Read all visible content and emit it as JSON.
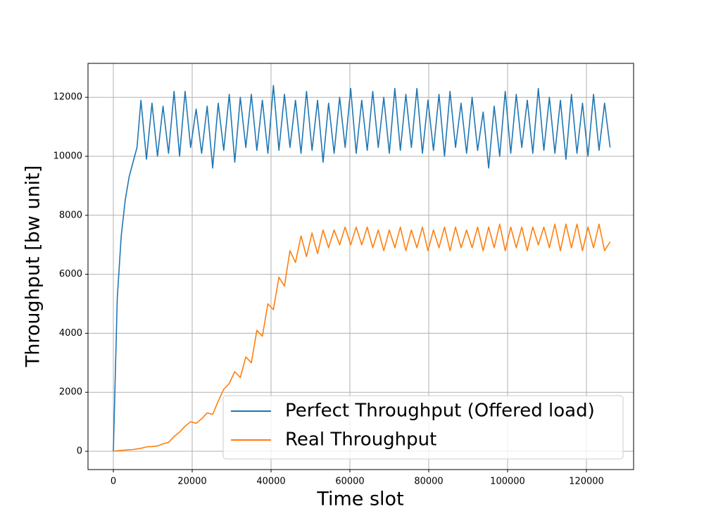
{
  "chart_data": {
    "type": "line",
    "xlabel": "Time slot",
    "ylabel": "Throughput [bw unit]",
    "x": [
      0,
      1000,
      2000,
      3000,
      4000,
      5000,
      6000,
      7000,
      8400,
      9800,
      11200,
      12600,
      14000,
      15400,
      16800,
      18200,
      19600,
      21000,
      22400,
      23800,
      25200,
      26600,
      28000,
      29400,
      30800,
      32200,
      33600,
      35000,
      36400,
      37800,
      39200,
      40600,
      42000,
      43400,
      44800,
      46200,
      47600,
      49000,
      50400,
      51800,
      53200,
      54600,
      56000,
      57400,
      58800,
      60200,
      61600,
      63000,
      64400,
      65800,
      67200,
      68600,
      70000,
      71400,
      72800,
      74200,
      75600,
      77000,
      78400,
      79800,
      81200,
      82600,
      84000,
      85400,
      86800,
      88200,
      89600,
      91000,
      92400,
      93800,
      95200,
      96600,
      98000,
      99400,
      100800,
      102200,
      103600,
      105000,
      106400,
      107800,
      109200,
      110600,
      112000,
      113400,
      114800,
      116200,
      117600,
      119000,
      120400,
      121800,
      123200,
      124600,
      126000
    ],
    "series": [
      {
        "name": "Perfect Throughput (Offered load)",
        "color": "#1f77b4",
        "values": [
          0,
          5200,
          7300,
          8500,
          9300,
          9800,
          10300,
          11900,
          9900,
          11800,
          10000,
          11700,
          10100,
          12200,
          10000,
          12200,
          10300,
          11600,
          10100,
          11700,
          9600,
          11800,
          10200,
          12100,
          9800,
          12000,
          10300,
          12100,
          10200,
          11900,
          10100,
          12400,
          10200,
          12100,
          10300,
          11900,
          10100,
          12200,
          10200,
          11900,
          9800,
          11800,
          10100,
          12000,
          10300,
          12300,
          10100,
          11900,
          10200,
          12200,
          10300,
          12000,
          10100,
          12300,
          10200,
          12100,
          10300,
          12300,
          10100,
          11900,
          10200,
          12100,
          10000,
          12200,
          10300,
          11800,
          10100,
          12000,
          10200,
          11500,
          9600,
          11700,
          10000,
          12200,
          10100,
          12100,
          10300,
          11900,
          10100,
          12300,
          10200,
          12000,
          10100,
          11900,
          9900,
          12100,
          10100,
          11800,
          10000,
          12100,
          10200,
          11800,
          10300
        ]
      },
      {
        "name": "Real Throughput",
        "color": "#ff7f0e",
        "values": [
          0,
          20,
          30,
          40,
          50,
          60,
          80,
          100,
          150,
          160,
          180,
          250,
          300,
          500,
          650,
          850,
          1000,
          950,
          1100,
          1300,
          1250,
          1700,
          2100,
          2300,
          2700,
          2500,
          3200,
          3000,
          4100,
          3900,
          5000,
          4800,
          5900,
          5600,
          6800,
          6400,
          7300,
          6600,
          7400,
          6700,
          7500,
          6900,
          7500,
          7000,
          7600,
          7000,
          7600,
          7000,
          7600,
          6900,
          7500,
          6800,
          7500,
          6900,
          7600,
          6800,
          7500,
          6900,
          7600,
          6800,
          7500,
          6900,
          7600,
          6800,
          7600,
          6900,
          7500,
          6900,
          7600,
          6800,
          7600,
          6900,
          7700,
          6800,
          7600,
          6900,
          7600,
          6800,
          7600,
          7000,
          7600,
          6900,
          7700,
          6800,
          7700,
          6900,
          7700,
          6800,
          7600,
          6900,
          7700,
          6800,
          7100
        ]
      }
    ],
    "xlim": [
      -6429,
      131964
    ],
    "ylim": [
      -620,
      13150
    ],
    "xticks": [
      0,
      20000,
      40000,
      60000,
      80000,
      100000,
      120000
    ],
    "yticks": [
      0,
      2000,
      4000,
      6000,
      8000,
      10000,
      12000
    ],
    "grid": true,
    "legend": "lower right"
  }
}
